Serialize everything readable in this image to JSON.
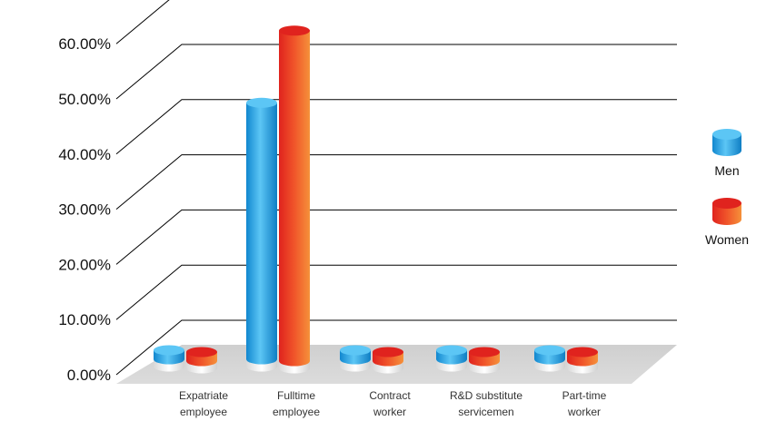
{
  "chart_data": {
    "type": "bar",
    "categories": [
      "Expatriate employee",
      "Fulltime employee",
      "Contract worker",
      "R&D substitute servicemen",
      "Part-time worker"
    ],
    "category_lines": [
      [
        "Expatriate",
        "employee"
      ],
      [
        "Fulltime",
        "employee"
      ],
      [
        "Contract",
        "worker"
      ],
      [
        "R&D substitute",
        "servicemen"
      ],
      [
        "Part-time",
        "worker"
      ]
    ],
    "series": [
      {
        "name": "Men",
        "values": [
          0.6,
          46.5,
          0.6,
          0.2,
          0.2
        ]
      },
      {
        "name": "Women",
        "values": [
          0.3,
          59.9,
          1.3,
          0.3,
          -0.3
        ]
      }
    ],
    "ylim": [
      0,
      70
    ],
    "yticks": [
      0,
      10,
      20,
      30,
      40,
      50,
      60
    ],
    "ytick_labels": [
      "0.00%",
      "10.00%",
      "20.00%",
      "30.00%",
      "40.00%",
      "50.00%",
      "60.00%"
    ],
    "grid": true,
    "legend_position": "right",
    "style": "3d-cylinder",
    "colors": {
      "men_light": "#5cc6f5",
      "men_dark": "#1187cf",
      "women_light": "#f5913a",
      "women_dark": "#e0231e",
      "floor": "#d6d6d6",
      "gridline": "#000000"
    }
  },
  "legend": {
    "items": [
      {
        "label": "Men",
        "series": "men"
      },
      {
        "label": "Women",
        "series": "women"
      }
    ]
  }
}
